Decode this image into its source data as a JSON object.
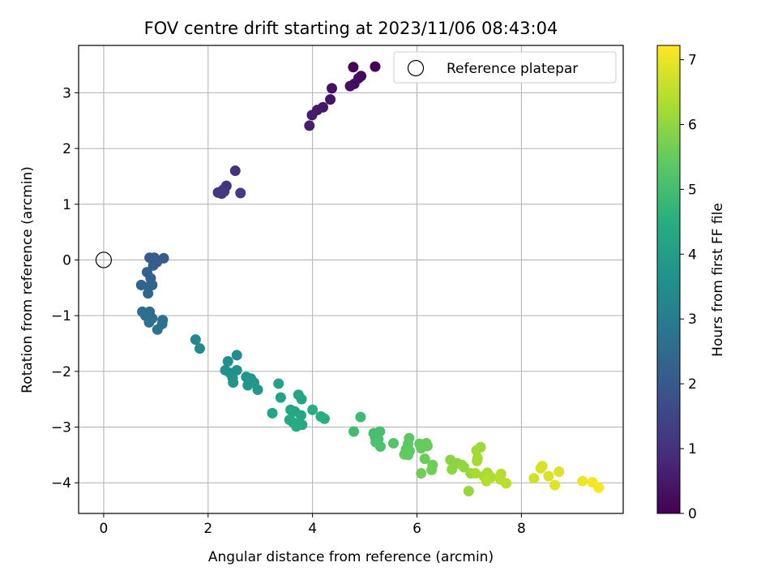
{
  "chart_data": {
    "type": "scatter",
    "title": "FOV centre drift starting at 2023/11/06 08:43:04",
    "xlabel": "Angular distance from reference (arcmin)",
    "ylabel": "Rotation from reference (arcmin)",
    "xlim": [
      -0.48,
      9.95
    ],
    "ylim": [
      -4.55,
      3.85
    ],
    "xticks": [
      0,
      2,
      4,
      6,
      8
    ],
    "yticks": [
      -4,
      -3,
      -2,
      -1,
      0,
      1,
      2,
      3
    ],
    "grid": true,
    "legend": {
      "placement": "top-right",
      "entries": [
        "Reference platepar"
      ]
    },
    "reference_point": {
      "x": 0,
      "y": 0
    },
    "colorbar": {
      "label": "Hours from first FF file",
      "range": [
        0,
        7.22
      ],
      "ticks": [
        0,
        1,
        2,
        3,
        4,
        5,
        6,
        7
      ],
      "colormap": "viridis"
    },
    "points": [
      {
        "x": 5.2,
        "y": 3.47,
        "c": 0.05
      },
      {
        "x": 4.78,
        "y": 3.46,
        "c": 0.1
      },
      {
        "x": 4.93,
        "y": 3.3,
        "c": 0.15
      },
      {
        "x": 4.88,
        "y": 3.26,
        "c": 0.2
      },
      {
        "x": 4.8,
        "y": 3.16,
        "c": 0.25
      },
      {
        "x": 4.72,
        "y": 3.12,
        "c": 0.3
      },
      {
        "x": 4.37,
        "y": 3.08,
        "c": 0.35
      },
      {
        "x": 4.34,
        "y": 2.88,
        "c": 0.4
      },
      {
        "x": 4.2,
        "y": 2.74,
        "c": 0.45
      },
      {
        "x": 4.09,
        "y": 2.69,
        "c": 0.5
      },
      {
        "x": 3.99,
        "y": 2.6,
        "c": 0.55
      },
      {
        "x": 3.94,
        "y": 2.41,
        "c": 0.6
      },
      {
        "x": 2.52,
        "y": 1.6,
        "c": 1.0
      },
      {
        "x": 2.35,
        "y": 1.33,
        "c": 1.05
      },
      {
        "x": 2.29,
        "y": 1.26,
        "c": 1.1
      },
      {
        "x": 2.19,
        "y": 1.21,
        "c": 1.15
      },
      {
        "x": 2.26,
        "y": 1.19,
        "c": 1.2
      },
      {
        "x": 2.31,
        "y": 1.23,
        "c": 1.25
      },
      {
        "x": 2.62,
        "y": 1.2,
        "c": 1.3
      },
      {
        "x": 0.88,
        "y": 0.04,
        "c": 2.0
      },
      {
        "x": 0.97,
        "y": 0.04,
        "c": 2.05
      },
      {
        "x": 1.15,
        "y": 0.03,
        "c": 2.1
      },
      {
        "x": 1.02,
        "y": -0.04,
        "c": 2.12
      },
      {
        "x": 0.95,
        "y": -0.1,
        "c": 2.15
      },
      {
        "x": 0.83,
        "y": -0.22,
        "c": 2.2
      },
      {
        "x": 0.9,
        "y": -0.33,
        "c": 2.25
      },
      {
        "x": 0.93,
        "y": -0.45,
        "c": 2.28
      },
      {
        "x": 0.72,
        "y": -0.45,
        "c": 2.3
      },
      {
        "x": 0.86,
        "y": -0.48,
        "c": 2.32
      },
      {
        "x": 0.85,
        "y": -0.6,
        "c": 2.35
      },
      {
        "x": 0.74,
        "y": -0.93,
        "c": 2.55
      },
      {
        "x": 0.88,
        "y": -0.93,
        "c": 2.58
      },
      {
        "x": 0.8,
        "y": -1.0,
        "c": 2.6
      },
      {
        "x": 0.93,
        "y": -1.05,
        "c": 2.62
      },
      {
        "x": 1.13,
        "y": -1.08,
        "c": 2.65
      },
      {
        "x": 0.87,
        "y": -1.12,
        "c": 2.68
      },
      {
        "x": 1.12,
        "y": -1.15,
        "c": 2.7
      },
      {
        "x": 1.03,
        "y": -1.25,
        "c": 2.72
      },
      {
        "x": 1.76,
        "y": -1.43,
        "c": 3.3
      },
      {
        "x": 1.84,
        "y": -1.59,
        "c": 3.35
      },
      {
        "x": 2.55,
        "y": -1.71,
        "c": 3.5
      },
      {
        "x": 2.38,
        "y": -1.82,
        "c": 3.55
      },
      {
        "x": 2.33,
        "y": -1.98,
        "c": 3.6
      },
      {
        "x": 2.55,
        "y": -1.98,
        "c": 3.62
      },
      {
        "x": 2.42,
        "y": -2.03,
        "c": 3.65
      },
      {
        "x": 2.47,
        "y": -2.12,
        "c": 3.68
      },
      {
        "x": 2.73,
        "y": -2.1,
        "c": 3.7
      },
      {
        "x": 2.48,
        "y": -2.2,
        "c": 3.72
      },
      {
        "x": 2.82,
        "y": -2.13,
        "c": 3.75
      },
      {
        "x": 2.88,
        "y": -2.2,
        "c": 3.78
      },
      {
        "x": 2.76,
        "y": -2.25,
        "c": 3.8
      },
      {
        "x": 2.95,
        "y": -2.33,
        "c": 3.82
      },
      {
        "x": 3.35,
        "y": -2.22,
        "c": 4.1
      },
      {
        "x": 3.73,
        "y": -2.42,
        "c": 4.2
      },
      {
        "x": 3.39,
        "y": -2.47,
        "c": 4.15
      },
      {
        "x": 3.79,
        "y": -2.5,
        "c": 4.22
      },
      {
        "x": 3.58,
        "y": -2.69,
        "c": 4.25
      },
      {
        "x": 3.23,
        "y": -2.75,
        "c": 4.18
      },
      {
        "x": 3.66,
        "y": -2.72,
        "c": 4.28
      },
      {
        "x": 3.78,
        "y": -2.79,
        "c": 4.3
      },
      {
        "x": 3.56,
        "y": -2.87,
        "c": 4.32
      },
      {
        "x": 3.62,
        "y": -2.91,
        "c": 4.35
      },
      {
        "x": 3.75,
        "y": -2.93,
        "c": 4.38
      },
      {
        "x": 3.8,
        "y": -2.96,
        "c": 4.4
      },
      {
        "x": 3.69,
        "y": -2.99,
        "c": 4.42
      },
      {
        "x": 4.0,
        "y": -2.69,
        "c": 4.45
      },
      {
        "x": 4.16,
        "y": -2.81,
        "c": 4.48
      },
      {
        "x": 4.23,
        "y": -2.85,
        "c": 4.5
      },
      {
        "x": 4.92,
        "y": -2.82,
        "c": 4.9
      },
      {
        "x": 4.79,
        "y": -3.08,
        "c": 4.95
      },
      {
        "x": 5.17,
        "y": -3.11,
        "c": 5.0
      },
      {
        "x": 5.29,
        "y": -3.08,
        "c": 5.05
      },
      {
        "x": 5.2,
        "y": -3.18,
        "c": 5.08
      },
      {
        "x": 5.26,
        "y": -3.22,
        "c": 5.1
      },
      {
        "x": 5.21,
        "y": -3.27,
        "c": 5.12
      },
      {
        "x": 5.3,
        "y": -3.35,
        "c": 5.15
      },
      {
        "x": 5.55,
        "y": -3.29,
        "c": 5.2
      },
      {
        "x": 5.85,
        "y": -3.2,
        "c": 5.35
      },
      {
        "x": 5.83,
        "y": -3.3,
        "c": 5.38
      },
      {
        "x": 6.05,
        "y": -3.3,
        "c": 5.45
      },
      {
        "x": 6.18,
        "y": -3.29,
        "c": 5.48
      },
      {
        "x": 5.79,
        "y": -3.4,
        "c": 5.4
      },
      {
        "x": 5.86,
        "y": -3.43,
        "c": 5.42
      },
      {
        "x": 6.08,
        "y": -3.38,
        "c": 5.5
      },
      {
        "x": 6.2,
        "y": -3.34,
        "c": 5.52
      },
      {
        "x": 5.76,
        "y": -3.49,
        "c": 5.44
      },
      {
        "x": 5.83,
        "y": -3.5,
        "c": 5.46
      },
      {
        "x": 6.15,
        "y": -3.57,
        "c": 5.55
      },
      {
        "x": 6.3,
        "y": -3.68,
        "c": 5.6
      },
      {
        "x": 6.28,
        "y": -3.77,
        "c": 5.62
      },
      {
        "x": 6.08,
        "y": -3.83,
        "c": 5.65
      },
      {
        "x": 6.64,
        "y": -3.59,
        "c": 5.9
      },
      {
        "x": 6.77,
        "y": -3.65,
        "c": 5.95
      },
      {
        "x": 6.86,
        "y": -3.68,
        "c": 6.0
      },
      {
        "x": 6.9,
        "y": -3.72,
        "c": 6.02
      },
      {
        "x": 6.67,
        "y": -3.76,
        "c": 5.98
      },
      {
        "x": 7.03,
        "y": -3.83,
        "c": 6.1
      },
      {
        "x": 6.99,
        "y": -4.15,
        "c": 6.05
      },
      {
        "x": 7.22,
        "y": -3.36,
        "c": 6.15
      },
      {
        "x": 7.14,
        "y": -3.42,
        "c": 6.18
      },
      {
        "x": 7.16,
        "y": -3.56,
        "c": 6.2
      },
      {
        "x": 7.15,
        "y": -3.61,
        "c": 6.22
      },
      {
        "x": 7.12,
        "y": -3.83,
        "c": 6.25
      },
      {
        "x": 7.28,
        "y": -3.88,
        "c": 6.28
      },
      {
        "x": 7.35,
        "y": -3.82,
        "c": 6.3
      },
      {
        "x": 7.36,
        "y": -3.93,
        "c": 6.32
      },
      {
        "x": 7.42,
        "y": -3.9,
        "c": 6.35
      },
      {
        "x": 7.33,
        "y": -3.97,
        "c": 6.38
      },
      {
        "x": 7.61,
        "y": -3.84,
        "c": 6.4
      },
      {
        "x": 7.6,
        "y": -3.94,
        "c": 6.42
      },
      {
        "x": 7.71,
        "y": -4.01,
        "c": 6.45
      },
      {
        "x": 8.24,
        "y": -3.92,
        "c": 6.7
      },
      {
        "x": 8.37,
        "y": -3.74,
        "c": 6.75
      },
      {
        "x": 8.4,
        "y": -3.7,
        "c": 6.78
      },
      {
        "x": 8.52,
        "y": -3.88,
        "c": 6.8
      },
      {
        "x": 8.72,
        "y": -3.8,
        "c": 6.85
      },
      {
        "x": 8.64,
        "y": -4.04,
        "c": 6.88
      },
      {
        "x": 9.17,
        "y": -3.97,
        "c": 7.05
      },
      {
        "x": 9.36,
        "y": -3.99,
        "c": 7.12
      },
      {
        "x": 9.48,
        "y": -4.09,
        "c": 7.2
      }
    ]
  }
}
